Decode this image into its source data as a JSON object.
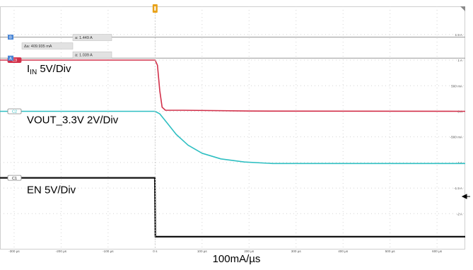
{
  "chart_data": {
    "type": "line",
    "x_unit": "µs",
    "x_ticks": [
      -300,
      -200,
      -100,
      0,
      100,
      200,
      300,
      400,
      500,
      600
    ],
    "x_tick_labels": [
      "-300 µs",
      "-200 µs",
      "-100 µs",
      "0 s",
      "100 µs",
      "200 µs",
      "300 µs",
      "400 µs",
      "500 µs",
      "600 µs"
    ],
    "xlim": [
      -330,
      660
    ],
    "y_unit": "A",
    "y_ticks": [
      1.5,
      1,
      0.5,
      0,
      -0.5,
      -1,
      -1.5,
      -2
    ],
    "y_tick_labels": [
      "1.5 A",
      "1 A",
      "500 mA",
      "0 A",
      "-500 mA",
      "-1 A",
      "-1.5 A",
      "-2 A"
    ],
    "ylim": [
      -2.7,
      2.05
    ],
    "grid": true,
    "series": [
      {
        "name": "I<sub>IN</sub> 5V/Div",
        "channel_tag": "C3",
        "color": "#d2304a",
        "points": [
          [
            -330,
            1.0
          ],
          [
            0,
            1.0
          ],
          [
            5,
            0.9
          ],
          [
            10,
            0.4
          ],
          [
            15,
            0.08
          ],
          [
            22,
            0.02
          ],
          [
            60,
            0.02
          ],
          [
            200,
            0.005
          ],
          [
            660,
            0.0
          ]
        ]
      },
      {
        "name": "VOUT_3.3V 2V/Div",
        "channel_tag": "C2",
        "color": "#2fbfc2",
        "points": [
          [
            -330,
            0.0
          ],
          [
            0,
            0.0
          ],
          [
            10,
            -0.05
          ],
          [
            25,
            -0.22
          ],
          [
            45,
            -0.45
          ],
          [
            70,
            -0.66
          ],
          [
            100,
            -0.82
          ],
          [
            140,
            -0.93
          ],
          [
            190,
            -0.99
          ],
          [
            250,
            -1.02
          ],
          [
            660,
            -1.02
          ]
        ]
      },
      {
        "name": "EN 5V/Div",
        "channel_tag": "C1",
        "color": "#111111",
        "points": [
          [
            -330,
            -1.3
          ],
          [
            -0.5,
            -1.3
          ],
          [
            0.5,
            -2.45
          ],
          [
            660,
            -2.45
          ]
        ]
      }
    ],
    "cursors": {
      "a1": "a: 1.449 A",
      "a2": "a: 1.039 A",
      "delta": "Δa: 409.935 mA"
    },
    "x_caption": "100mA/µs"
  },
  "colors": {
    "grid": "#d4d4d4",
    "trigger": "#e8a21a",
    "cursor_box": "#e2e2e2"
  }
}
